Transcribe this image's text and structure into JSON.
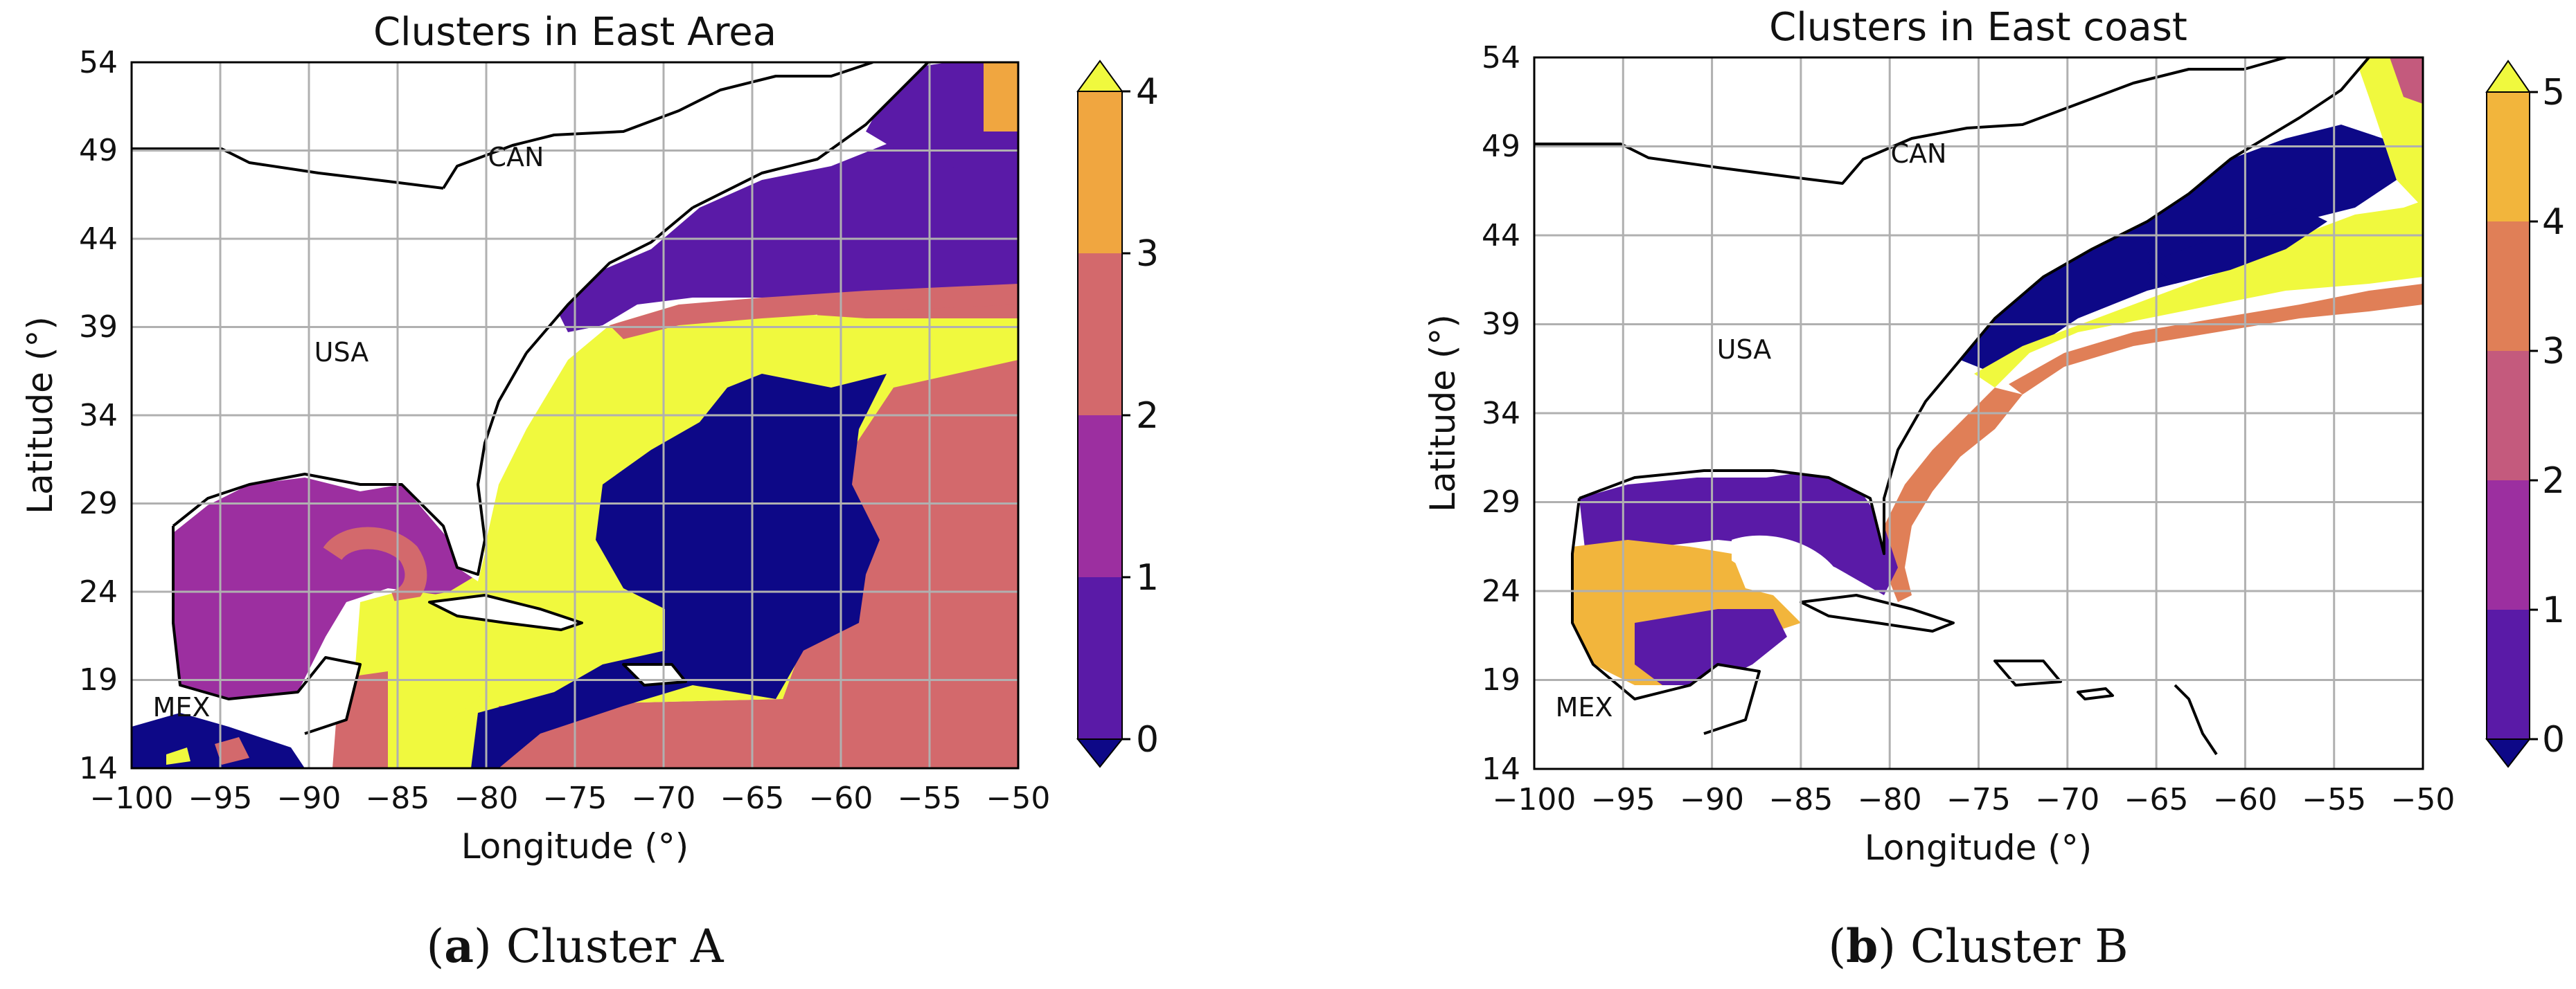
{
  "colors": {
    "0": "#0d0887",
    "1": "#5a1aa7",
    "2": "#9c2fa0",
    "3": "#d3696c",
    "4": "#f0a640",
    "5": "#f0f93e",
    "ocean_white": "#ffffff",
    "cb_a": [
      "#5a1aa7",
      "#9c2fa0",
      "#d3696c",
      "#f0a640"
    ],
    "cb_b": [
      "#5a1aa7",
      "#9c2fa0",
      "#c45a7d",
      "#e07f57",
      "#f2b53c"
    ]
  },
  "panels": [
    {
      "title": "Clusters in East Area",
      "xlabel": "Longitude (°)",
      "ylabel": "Latitude (°)",
      "xticks": [
        "−100",
        "−95",
        "−90",
        "−85",
        "−80",
        "−75",
        "−70",
        "−65",
        "−60",
        "−55",
        "−50"
      ],
      "yticks": [
        "14",
        "19",
        "24",
        "29",
        "34",
        "39",
        "44",
        "49",
        "54"
      ],
      "country_labels": [
        "CAN",
        "USA",
        "MEX"
      ],
      "colorbar_ticks": [
        "0",
        "1",
        "2",
        "3",
        "4"
      ],
      "caption_letter": "a",
      "caption_text": " Cluster A"
    },
    {
      "title": "Clusters in East coast",
      "xlabel": "Longitude (°)",
      "ylabel": "Latitude (°)",
      "xticks": [
        "−100",
        "−95",
        "−90",
        "−85",
        "−80",
        "−75",
        "−70",
        "−65",
        "−60",
        "−55",
        "−50"
      ],
      "yticks": [
        "14",
        "19",
        "24",
        "29",
        "34",
        "39",
        "44",
        "49",
        "54"
      ],
      "country_labels": [
        "CAN",
        "USA",
        "MEX"
      ],
      "colorbar_ticks": [
        "0",
        "1",
        "2",
        "3",
        "4",
        "5"
      ],
      "caption_letter": "b",
      "caption_text": " Cluster B"
    }
  ]
}
